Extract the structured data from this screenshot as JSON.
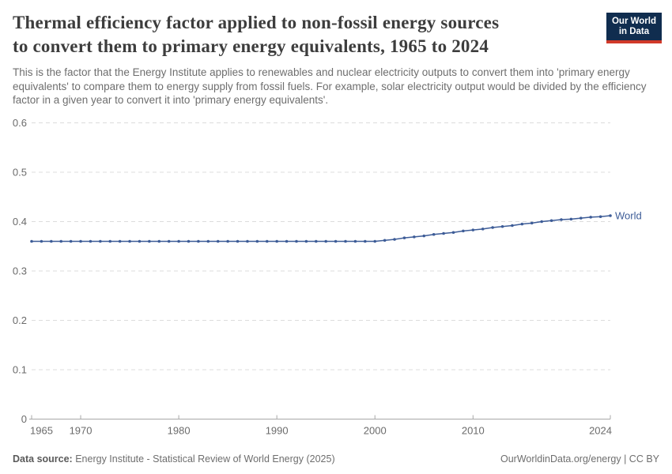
{
  "header": {
    "title_line1": "Thermal efficiency factor applied to non-fossil energy sources",
    "title_line2": "to convert them to primary energy equivalents, 1965 to 2024",
    "subtitle": "This is the factor that the Energy Institute applies to renewables and nuclear electricity outputs to convert them into 'primary energy equivalents' to compare them to energy supply from fossil fuels. For example, solar electricity output would be divided by the efficiency factor in a given year to convert it into 'primary energy equivalents'.",
    "logo": {
      "line1": "Our World",
      "line2": "in Data",
      "bg_color": "#102d4f",
      "accent_color": "#d13a29"
    }
  },
  "footer": {
    "datasource_label": "Data source:",
    "datasource_text": "Energy Institute - Statistical Review of World Energy (2025)",
    "credit": "OurWorldinData.org/energy | CC BY"
  },
  "chart_data": {
    "type": "line",
    "title": "Thermal efficiency factor applied to non-fossil energy sources to convert them to primary energy equivalents, 1965 to 2024",
    "xlabel": "",
    "ylabel": "",
    "xlim": [
      1965,
      2024
    ],
    "ylim": [
      0,
      0.6
    ],
    "x_ticks": [
      1965,
      1970,
      1980,
      1990,
      2000,
      2010,
      2024
    ],
    "y_ticks": [
      0,
      0.1,
      0.2,
      0.3,
      0.4,
      0.5,
      0.6
    ],
    "grid": "horizontal-dashed",
    "legend_position": "end-of-line",
    "colors": {
      "gridline": "#dcdcdc",
      "axis": "#a8a8a8",
      "tick_label": "#6b6b6b"
    },
    "series": [
      {
        "name": "World",
        "color": "#3d5c97",
        "points": [
          [
            1965,
            0.36
          ],
          [
            1966,
            0.36
          ],
          [
            1967,
            0.36
          ],
          [
            1968,
            0.36
          ],
          [
            1969,
            0.36
          ],
          [
            1970,
            0.36
          ],
          [
            1971,
            0.36
          ],
          [
            1972,
            0.36
          ],
          [
            1973,
            0.36
          ],
          [
            1974,
            0.36
          ],
          [
            1975,
            0.36
          ],
          [
            1976,
            0.36
          ],
          [
            1977,
            0.36
          ],
          [
            1978,
            0.36
          ],
          [
            1979,
            0.36
          ],
          [
            1980,
            0.36
          ],
          [
            1981,
            0.36
          ],
          [
            1982,
            0.36
          ],
          [
            1983,
            0.36
          ],
          [
            1984,
            0.36
          ],
          [
            1985,
            0.36
          ],
          [
            1986,
            0.36
          ],
          [
            1987,
            0.36
          ],
          [
            1988,
            0.36
          ],
          [
            1989,
            0.36
          ],
          [
            1990,
            0.36
          ],
          [
            1991,
            0.36
          ],
          [
            1992,
            0.36
          ],
          [
            1993,
            0.36
          ],
          [
            1994,
            0.36
          ],
          [
            1995,
            0.36
          ],
          [
            1996,
            0.36
          ],
          [
            1997,
            0.36
          ],
          [
            1998,
            0.36
          ],
          [
            1999,
            0.36
          ],
          [
            2000,
            0.36
          ],
          [
            2001,
            0.362
          ],
          [
            2002,
            0.364
          ],
          [
            2003,
            0.367
          ],
          [
            2004,
            0.369
          ],
          [
            2005,
            0.371
          ],
          [
            2006,
            0.374
          ],
          [
            2007,
            0.376
          ],
          [
            2008,
            0.378
          ],
          [
            2009,
            0.381
          ],
          [
            2010,
            0.383
          ],
          [
            2011,
            0.385
          ],
          [
            2012,
            0.388
          ],
          [
            2013,
            0.39
          ],
          [
            2014,
            0.392
          ],
          [
            2015,
            0.395
          ],
          [
            2016,
            0.397
          ],
          [
            2017,
            0.4
          ],
          [
            2018,
            0.402
          ],
          [
            2019,
            0.404
          ],
          [
            2020,
            0.405
          ],
          [
            2021,
            0.407
          ],
          [
            2022,
            0.409
          ],
          [
            2023,
            0.41
          ],
          [
            2024,
            0.412
          ]
        ]
      }
    ]
  }
}
